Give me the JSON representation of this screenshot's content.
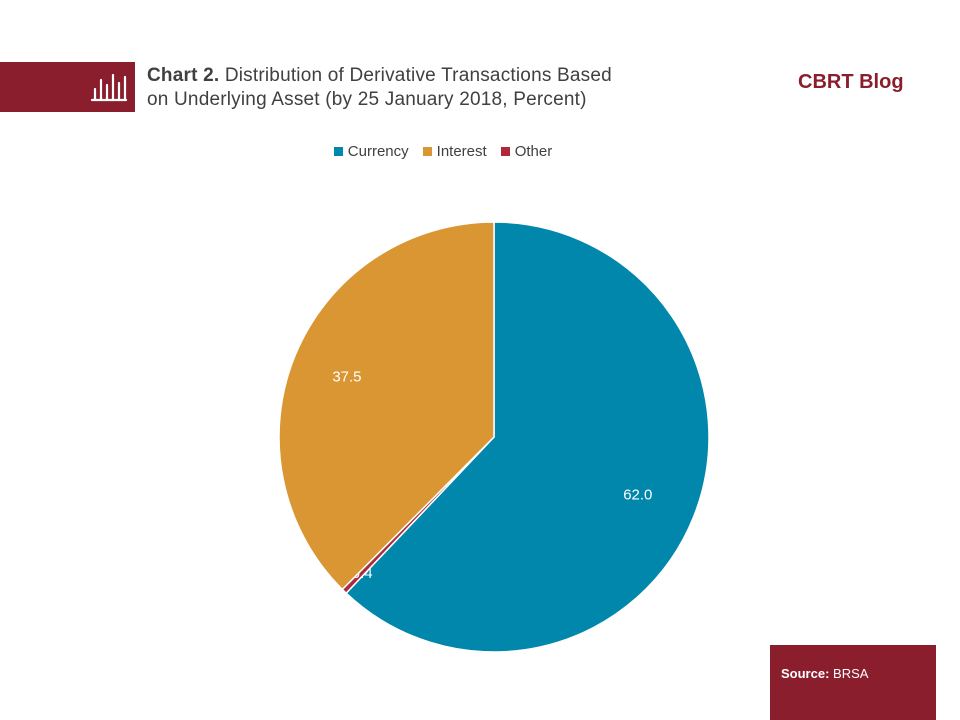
{
  "header": {
    "chart_number": "Chart 2.",
    "title_line1": "Distribution  of Derivative Transactions  Based",
    "title_line2": "on Underlying  Asset (by 25 January 2018, Percent)",
    "brand": "CBRT Blog",
    "icon": "bar-chart-icon"
  },
  "colors": {
    "brand": "#8b1e2d",
    "currency": "#0087ab",
    "interest": "#d99633",
    "other": "#b0293b"
  },
  "chart_data": {
    "type": "pie",
    "title": "Distribution of Derivative Transactions Based on Underlying Asset (by 25 January 2018, Percent)",
    "legend_position": "top",
    "slices": [
      {
        "name": "Currency",
        "value": 62.0,
        "label": "62.0",
        "color": "#0087ab"
      },
      {
        "name": "Other",
        "value": 0.4,
        "label": "0.4",
        "color": "#b0293b"
      },
      {
        "name": "Interest",
        "value": 37.5,
        "label": "37.5",
        "color": "#d99633"
      }
    ],
    "legend": [
      "Currency",
      "Interest",
      "Other"
    ]
  },
  "footer": {
    "source_label": "Source:",
    "source_value": "BRSA"
  }
}
